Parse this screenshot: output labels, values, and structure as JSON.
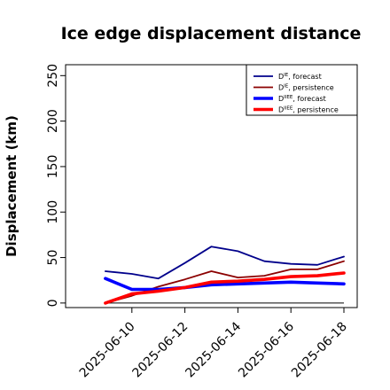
{
  "chart_data": {
    "type": "line",
    "title": "Ice edge displacement distance",
    "xlabel": "",
    "ylabel": "Displacement (km)",
    "xlim": [
      "2025-06-08",
      "2025-06-18"
    ],
    "ylim": [
      -5,
      262
    ],
    "yticks": [
      0,
      50,
      100,
      150,
      200,
      250
    ],
    "xticks": [
      {
        "date": "2025-06-10",
        "label": "2025-06-10",
        "color": "#228B22"
      },
      {
        "date": "2025-06-12",
        "label": "2025-06-12",
        "color": "#000000"
      },
      {
        "date": "2025-06-14",
        "label": "2025-06-14",
        "color": "#000000"
      },
      {
        "date": "2025-06-16",
        "label": "2025-06-16",
        "color": "#000000"
      },
      {
        "date": "2025-06-18",
        "label": "2025-06-18",
        "color": "#000000"
      }
    ],
    "grid": false,
    "legend_position": "top-right",
    "reference_line": {
      "y": 0,
      "color": "#000000"
    },
    "x": [
      "2025-06-09",
      "2025-06-10",
      "2025-06-11",
      "2025-06-12",
      "2025-06-13",
      "2025-06-14",
      "2025-06-15",
      "2025-06-16",
      "2025-06-17",
      "2025-06-18"
    ],
    "series": [
      {
        "name": "D^IE, forecast",
        "base": "D",
        "sup": "IE",
        "suffix": ", forecast",
        "color": "#00008B",
        "width": 1.8,
        "values": [
          35,
          32,
          27,
          44,
          62,
          57,
          46,
          43,
          42,
          51
        ]
      },
      {
        "name": "D^IE, persistence",
        "base": "D",
        "sup": "IE",
        "suffix": ", persistence",
        "color": "#8B0000",
        "width": 1.8,
        "values": [
          0,
          8,
          18,
          26,
          35,
          28,
          30,
          37,
          37,
          46
        ]
      },
      {
        "name": "D^IIEE, forecast",
        "base": "D",
        "sup": "IIEE",
        "suffix": ", forecast",
        "color": "#0000FF",
        "width": 3.6,
        "values": [
          27,
          15,
          15,
          17,
          20,
          21,
          22,
          23,
          22,
          21
        ]
      },
      {
        "name": "D^IIEE, persistence",
        "base": "D",
        "sup": "IIEE",
        "suffix": ", persistence",
        "color": "#FF0000",
        "width": 3.6,
        "values": [
          0,
          10,
          13,
          17,
          23,
          24,
          26,
          29,
          30,
          33
        ]
      }
    ]
  }
}
